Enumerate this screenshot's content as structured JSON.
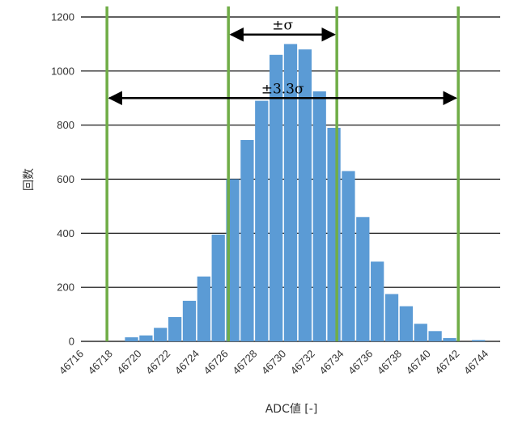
{
  "chart_data": {
    "type": "bar",
    "title": "",
    "xlabel": "ADC値 [-]",
    "ylabel": "回数",
    "ylim": [
      0,
      1200
    ],
    "yticks": [
      "0",
      "200",
      "400",
      "600",
      "800",
      "1000",
      "1200"
    ],
    "xticks": [
      "46716",
      "46718",
      "46720",
      "46722",
      "46724",
      "46726",
      "46728",
      "46730",
      "46732",
      "46734",
      "46736",
      "46738",
      "46740",
      "46742",
      "46744"
    ],
    "grid": "horizontal",
    "bar_color": "#5b9bd5",
    "line_color": "#70ad47",
    "x": [
      46718,
      46719,
      46720,
      46721,
      46722,
      46723,
      46724,
      46725,
      46726,
      46727,
      46728,
      46729,
      46730,
      46731,
      46732,
      46733,
      46734,
      46735,
      46736,
      46737,
      46738,
      46739,
      46740,
      46741,
      46742,
      46743,
      46744
    ],
    "values": [
      0,
      15,
      22,
      50,
      90,
      150,
      240,
      395,
      600,
      745,
      890,
      1060,
      1100,
      1080,
      925,
      790,
      630,
      460,
      295,
      175,
      130,
      65,
      38,
      12,
      0,
      5,
      0
    ],
    "vertical_lines": [
      46717.8,
      46726.2,
      46733.7,
      46742.1
    ],
    "annotations": [
      {
        "text": "±σ",
        "from": 46726.2,
        "to": 46733.7,
        "y": 1135
      },
      {
        "text": "±3.3σ",
        "from": 46717.8,
        "to": 46742.1,
        "y": 900
      }
    ]
  }
}
